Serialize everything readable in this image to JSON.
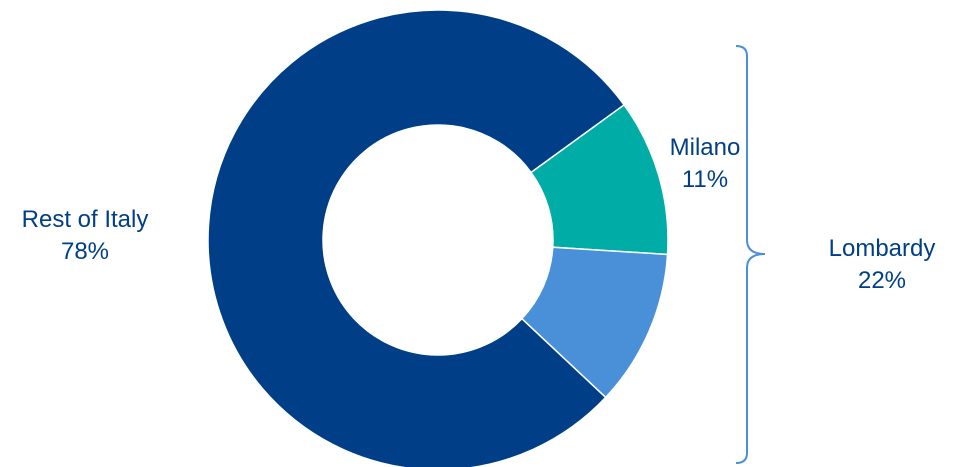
{
  "chart_data": {
    "type": "pie",
    "variant": "donut",
    "slices": [
      {
        "label": "Milano",
        "value_label": "11%",
        "value": 11,
        "color": "#00ADA6"
      },
      {
        "label": "",
        "value_label": "",
        "value": 11,
        "color": "#4A90D9"
      },
      {
        "label": "Rest of Italy",
        "value_label": "78%",
        "value": 78,
        "color": "#003F87"
      }
    ],
    "group_annotation": {
      "label": "Lombardy",
      "value_label": "22%",
      "bracket_color": "#4A90D9"
    },
    "label_color": "#003F87",
    "legend": "none"
  }
}
